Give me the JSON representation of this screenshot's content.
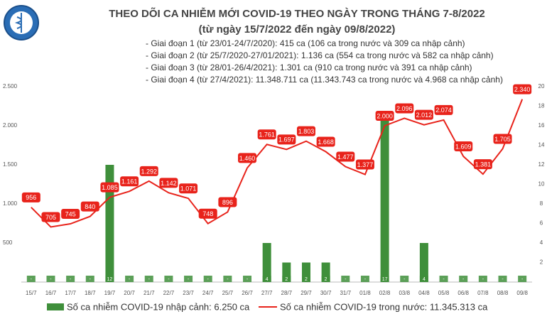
{
  "chart_data": {
    "type": "bar-line",
    "title": "THEO DÕI CA NHIỄM MỚI COVID-19 THEO NGÀY TRONG THÁNG 7-8/2022",
    "subtitle": "(từ ngày 15/7/2022 đến ngày 09/8/2022)",
    "annotations": [
      "- Giai đoạn 1 (từ 23/01-24/7/2020): 415 ca (106 ca trong nước và 309 ca nhập cảnh)",
      "- Giai đoạn 2 (từ 25/7/2020-27/01/2021): 1.136 ca (554 ca trong nước và 582 ca nhập cảnh)",
      "- Giai đoạn 3 (từ 28/01-26/4/2021): 1.301 ca (910 ca trong nước và 391 ca nhập cảnh)",
      "- Giai đoạn 4 (từ 27/4/2021): 11.348.711 ca (11.343.743 ca trong nước và 4.968 ca nhập cảnh)"
    ],
    "categories": [
      "15/7",
      "16/7",
      "17/7",
      "18/7",
      "19/7",
      "20/7",
      "21/7",
      "22/7",
      "23/7",
      "24/7",
      "25/7",
      "26/7",
      "27/7",
      "28/7",
      "29/7",
      "30/7",
      "31/7",
      "01/8",
      "02/8",
      "03/8",
      "04/8",
      "05/8",
      "06/8",
      "07/8",
      "08/8",
      "09/8"
    ],
    "series": [
      {
        "name": "Số ca nhiễm COVID-19 nhập cảnh: 6.250 ca",
        "color": "#3f8f3b",
        "kind": "bar",
        "axis": "y2",
        "values": [
          0,
          0,
          0,
          0,
          12,
          0,
          0,
          0,
          0,
          0,
          0,
          0,
          4,
          2,
          2,
          2,
          0,
          0,
          17,
          0,
          4,
          0,
          0,
          0,
          0,
          0
        ],
        "value_labels": [
          "-",
          "-",
          "-",
          "-",
          "12",
          "-",
          "-",
          "-",
          "-",
          "-",
          "-",
          "-",
          "4",
          "2",
          "2",
          "2",
          "-",
          "-",
          "17",
          "-",
          "4",
          "-",
          "-",
          "-",
          "-",
          "-"
        ]
      },
      {
        "name": "Số ca nhiễm COVID-19 trong nước: 11.345.313 ca",
        "color": "#e8231b",
        "kind": "line",
        "values": [
          956,
          705,
          745,
          840,
          1085,
          1161,
          1292,
          1142,
          1071,
          748,
          896,
          1460,
          1761,
          1697,
          1803,
          1668,
          1477,
          1377,
          2000,
          2096,
          2012,
          2074,
          1609,
          1381,
          1705,
          2340
        ],
        "value_labels": [
          "956",
          "705",
          "745",
          "840",
          "1.085",
          "1.161",
          "1.292",
          "1.142",
          "1.071",
          "748",
          "896",
          "1.460",
          "1.761",
          "1.697",
          "1.803",
          "1.668",
          "1.477",
          "1.377",
          "2.000",
          "2.096",
          "2.012",
          "2.074",
          "1.609",
          "1.381",
          "1.705",
          "2.340"
        ]
      }
    ],
    "ylim": [
      0,
      2500
    ],
    "yticks": [
      {
        "value": 500,
        "label": "500"
      },
      {
        "value": 1000,
        "label": "1.000"
      },
      {
        "value": 1500,
        "label": "1.500"
      },
      {
        "value": 2000,
        "label": "2.000"
      },
      {
        "value": 2500,
        "label": "2.500"
      }
    ],
    "y2lim": [
      0,
      20
    ],
    "y2ticks": [
      2,
      4,
      6,
      8,
      10,
      12,
      14,
      16,
      18,
      20
    ]
  }
}
